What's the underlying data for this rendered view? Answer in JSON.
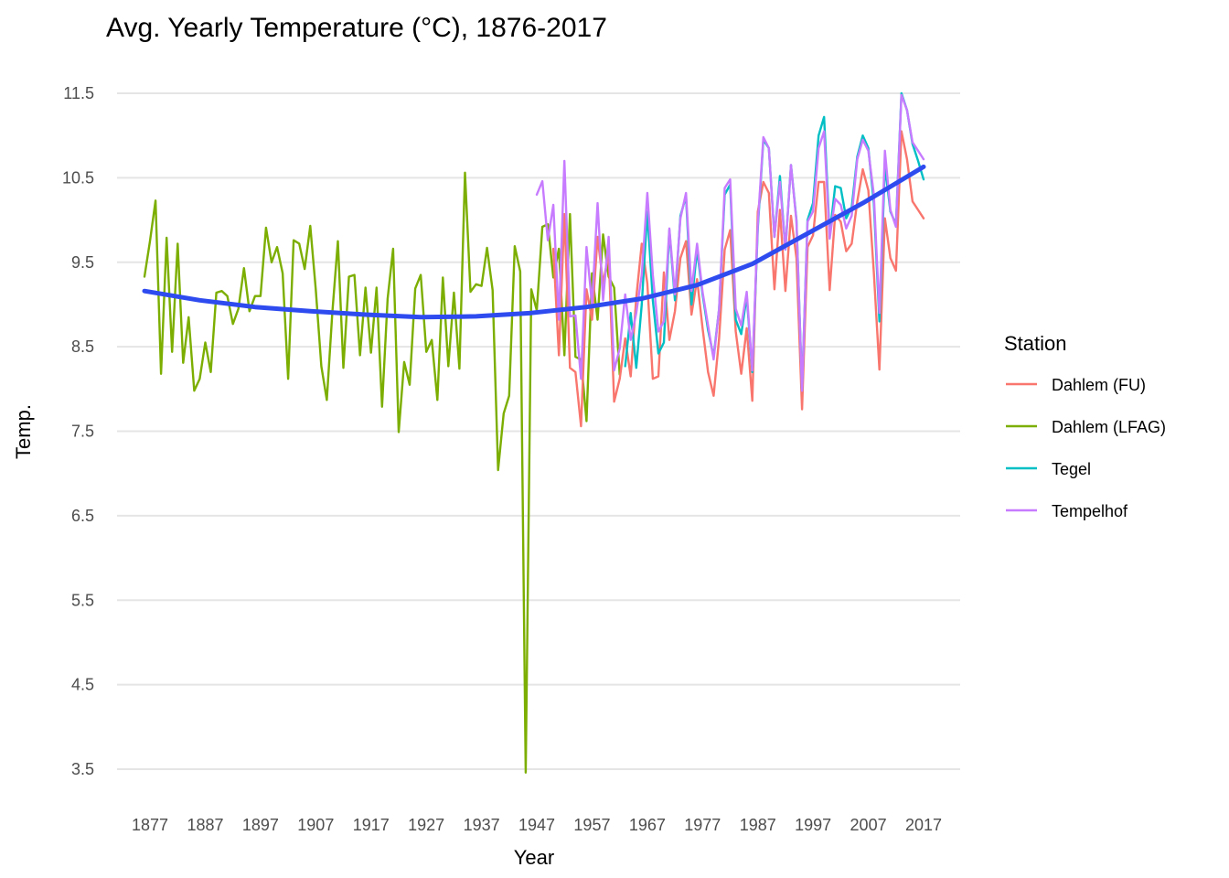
{
  "chart_data": {
    "type": "line",
    "title": "Avg. Yearly Temperature (°C), 1876-2017",
    "xlabel": "Year",
    "ylabel": "Temp.",
    "xlim": [
      1876,
      2017
    ],
    "ylim": [
      3.5,
      11.5
    ],
    "x_ticks": [
      1877,
      1887,
      1897,
      1907,
      1917,
      1927,
      1937,
      1947,
      1957,
      1967,
      1977,
      1987,
      1997,
      2007,
      2017
    ],
    "y_ticks": [
      3.5,
      4.5,
      5.5,
      6.5,
      7.5,
      8.5,
      9.5,
      10.5,
      11.5
    ],
    "y_tick_labels": [
      "3.5",
      "4.5",
      "5.5",
      "6.5",
      "7.5",
      "8.5",
      "9.5",
      "10.5",
      "11.5"
    ],
    "grid": "horizontal",
    "legend": {
      "title": "Station",
      "position": "right"
    },
    "series": [
      {
        "name": "Dahlem (LFAG)",
        "color": "#7CAE00",
        "x": [
          1876,
          1877,
          1878,
          1879,
          1880,
          1881,
          1882,
          1883,
          1884,
          1885,
          1886,
          1887,
          1888,
          1889,
          1890,
          1891,
          1892,
          1893,
          1894,
          1895,
          1896,
          1897,
          1898,
          1899,
          1900,
          1901,
          1902,
          1903,
          1904,
          1905,
          1906,
          1907,
          1908,
          1909,
          1910,
          1911,
          1912,
          1913,
          1914,
          1915,
          1916,
          1917,
          1918,
          1919,
          1920,
          1921,
          1922,
          1923,
          1924,
          1925,
          1926,
          1927,
          1928,
          1929,
          1930,
          1931,
          1932,
          1933,
          1934,
          1935,
          1936,
          1937,
          1938,
          1939,
          1940,
          1941,
          1942,
          1943,
          1944,
          1945,
          1946,
          1947,
          1948,
          1949,
          1950,
          1951,
          1952,
          1953,
          1954,
          1955,
          1956,
          1957,
          1958,
          1959,
          1960,
          1961,
          1962
        ],
        "y": [
          9.33,
          9.75,
          10.23,
          8.18,
          9.79,
          8.44,
          9.72,
          8.31,
          8.85,
          7.98,
          8.12,
          8.55,
          8.2,
          9.14,
          9.16,
          9.1,
          8.77,
          8.95,
          9.43,
          8.92,
          9.1,
          9.1,
          9.91,
          9.5,
          9.68,
          9.37,
          8.12,
          9.76,
          9.72,
          9.42,
          9.93,
          9.18,
          8.27,
          7.87,
          8.9,
          9.75,
          8.25,
          9.33,
          9.35,
          8.4,
          9.2,
          8.43,
          9.2,
          7.79,
          9.07,
          9.66,
          7.49,
          8.32,
          8.05,
          9.19,
          9.35,
          8.44,
          8.58,
          7.87,
          9.32,
          8.27,
          9.14,
          8.24,
          10.56,
          9.15,
          9.24,
          9.22,
          9.67,
          9.17,
          7.04,
          7.71,
          7.92,
          9.69,
          9.39,
          3.46,
          9.18,
          8.93,
          9.92,
          9.95,
          9.32,
          9.66,
          8.4,
          10.07,
          8.38,
          8.35,
          7.62,
          9.37,
          8.82,
          9.83,
          9.33,
          9.2,
          8.17
        ]
      },
      {
        "name": "Dahlem (FU)",
        "color": "#F8766D",
        "x": [
          1950,
          1951,
          1952,
          1953,
          1954,
          1955,
          1956,
          1957,
          1958,
          1959,
          1960,
          1961,
          1962,
          1963,
          1964,
          1965,
          1966,
          1967,
          1968,
          1969,
          1970,
          1971,
          1972,
          1973,
          1974,
          1975,
          1976,
          1977,
          1978,
          1979,
          1980,
          1981,
          1982,
          1983,
          1984,
          1985,
          1986,
          1987,
          1988,
          1989,
          1990,
          1991,
          1992,
          1993,
          1994,
          1995,
          1996,
          1997,
          1998,
          1999,
          2000,
          2001,
          2002,
          2003,
          2004,
          2005,
          2006,
          2007,
          2008,
          2009,
          2010,
          2011,
          2012,
          2013,
          2014,
          2015,
          2016,
          2017
        ],
        "y": [
          9.66,
          8.4,
          10.07,
          8.25,
          8.2,
          7.56,
          9.18,
          8.82,
          9.8,
          9.25,
          9.6,
          7.85,
          8.12,
          8.6,
          8.15,
          9.08,
          9.72,
          9.25,
          8.12,
          8.15,
          9.38,
          8.58,
          8.92,
          9.55,
          9.75,
          8.88,
          9.3,
          8.72,
          8.2,
          7.92,
          8.6,
          9.65,
          9.88,
          8.68,
          8.18,
          8.72,
          7.86,
          10.1,
          10.45,
          10.32,
          9.18,
          10.12,
          9.16,
          10.05,
          9.55,
          7.76,
          9.68,
          9.82,
          10.45,
          10.45,
          9.17,
          10.06,
          9.98,
          9.63,
          9.72,
          10.22,
          10.6,
          10.35,
          9.38,
          8.23,
          10.02,
          9.55,
          9.4,
          11.05,
          10.72,
          10.22,
          10.12,
          10.02
        ]
      },
      {
        "name": "Tegel",
        "color": "#00BFC4",
        "x": [
          1963,
          1964,
          1965,
          1966,
          1967,
          1968,
          1969,
          1970,
          1971,
          1972,
          1973,
          1974,
          1975,
          1976,
          1977,
          1978,
          1979,
          1980,
          1981,
          1982,
          1983,
          1984,
          1985,
          1986,
          1987,
          1988,
          1989,
          1990,
          1991,
          1992,
          1993,
          1994,
          1995,
          1996,
          1997,
          1998,
          1999,
          2000,
          2001,
          2002,
          2003,
          2004,
          2005,
          2006,
          2007,
          2008,
          2009,
          2010,
          2011,
          2012,
          2013,
          2014,
          2015,
          2016,
          2017
        ],
        "y": [
          8.27,
          8.9,
          8.25,
          9.0,
          10.1,
          9.05,
          8.42,
          8.55,
          9.88,
          9.05,
          10.05,
          10.28,
          9.0,
          9.65,
          9.12,
          8.7,
          8.38,
          8.95,
          10.3,
          10.42,
          8.82,
          8.65,
          9.1,
          8.2,
          9.9,
          10.95,
          10.85,
          9.8,
          10.52,
          9.65,
          10.65,
          10.0,
          8.0,
          10.0,
          10.2,
          11.0,
          11.22,
          9.82,
          10.4,
          10.38,
          10.02,
          10.15,
          10.75,
          11.0,
          10.85,
          10.2,
          8.8,
          10.65,
          10.1,
          9.95,
          11.5,
          11.3,
          10.9,
          10.7,
          10.48
        ]
      },
      {
        "name": "Tempelhof",
        "color": "#C77CFF",
        "x": [
          1947,
          1948,
          1949,
          1950,
          1951,
          1952,
          1953,
          1954,
          1955,
          1956,
          1957,
          1958,
          1959,
          1960,
          1961,
          1962,
          1963,
          1964,
          1965,
          1966,
          1967,
          1968,
          1969,
          1970,
          1971,
          1972,
          1973,
          1974,
          1975,
          1976,
          1977,
          1978,
          1979,
          1980,
          1981,
          1982,
          1983,
          1984,
          1985,
          1986,
          1987,
          1988,
          1989,
          1990,
          1991,
          1992,
          1993,
          1994,
          1995,
          1996,
          1997,
          1998,
          1999,
          2000,
          2001,
          2002,
          2003,
          2004,
          2005,
          2006,
          2007,
          2008,
          2009,
          2010,
          2011,
          2012,
          2013,
          2014,
          2015,
          2016,
          2017
        ],
        "y": [
          10.3,
          10.46,
          9.76,
          10.18,
          8.82,
          10.7,
          8.86,
          8.87,
          8.12,
          9.68,
          9.0,
          10.2,
          9.05,
          9.8,
          8.22,
          8.48,
          9.12,
          8.58,
          8.9,
          9.35,
          10.32,
          9.35,
          8.68,
          8.8,
          9.9,
          9.12,
          10.02,
          10.32,
          9.16,
          9.72,
          9.15,
          8.75,
          8.35,
          8.95,
          10.38,
          10.48,
          8.95,
          8.75,
          9.15,
          8.22,
          9.95,
          10.98,
          10.85,
          9.8,
          10.45,
          9.65,
          10.65,
          9.98,
          7.98,
          9.98,
          10.1,
          10.85,
          11.05,
          9.78,
          10.25,
          10.18,
          9.9,
          10.05,
          10.72,
          10.95,
          10.82,
          10.3,
          8.9,
          10.82,
          10.12,
          9.92,
          11.48,
          11.3,
          10.92,
          10.82,
          10.72
        ]
      },
      {
        "name": "",
        "type": "smooth",
        "color": "#2E4BF0",
        "x": [
          1876,
          1886,
          1896,
          1906,
          1916,
          1926,
          1936,
          1946,
          1956,
          1966,
          1976,
          1986,
          1996,
          2006,
          2017
        ],
        "y": [
          9.16,
          9.05,
          8.97,
          8.92,
          8.88,
          8.85,
          8.86,
          8.9,
          8.97,
          9.07,
          9.23,
          9.48,
          9.84,
          10.2,
          10.63
        ]
      }
    ]
  }
}
